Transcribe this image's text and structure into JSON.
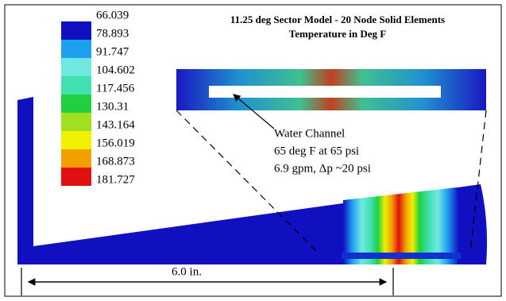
{
  "title": {
    "line1": "11.25 deg Sector Model - 20 Node Solid Elements",
    "line2": "Temperature in Deg F"
  },
  "legend": {
    "labels": [
      "66.039",
      "78.893",
      "91.747",
      "104.602",
      "117.456",
      "130.31",
      "143.164",
      "156.019",
      "168.873",
      "181.727"
    ]
  },
  "annotation": {
    "lines": [
      "Water Channel",
      "65 deg F at 65 psi",
      "6.9 gpm, Δp ~20 psi"
    ]
  },
  "dimension": {
    "label": "6.0 in."
  }
}
